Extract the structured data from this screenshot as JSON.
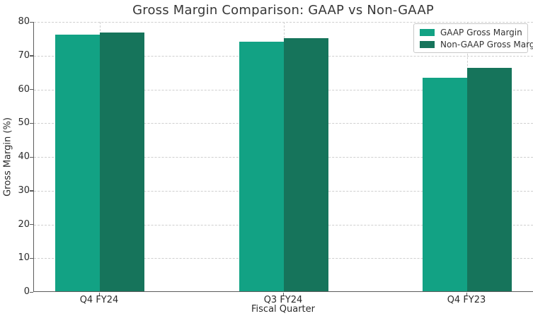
{
  "chart_data": {
    "type": "bar",
    "title": "Gross Margin Comparison: GAAP vs Non-GAAP",
    "xlabel": "Fiscal Quarter",
    "ylabel": "Gross Margin (%)",
    "categories": [
      "Q4 FY24",
      "Q3 FY24",
      "Q4 FY23"
    ],
    "series": [
      {
        "name": "GAAP Gross Margin",
        "color": "#12a284",
        "values": [
          76.0,
          74.0,
          63.3
        ]
      },
      {
        "name": "Non-GAAP Gross Margin",
        "color": "#16745b",
        "values": [
          76.7,
          75.0,
          66.1
        ]
      }
    ],
    "ylim": [
      0,
      80
    ],
    "yticks": [
      0,
      10,
      20,
      30,
      40,
      50,
      60,
      70,
      80
    ],
    "grid": {
      "style": "dashed",
      "axes": "both",
      "color": "#cfcfcf"
    },
    "legend": {
      "position": "upper-right",
      "entries": [
        "GAAP Gross Margin",
        "Non-GAAP Gross Margin"
      ]
    },
    "colors": {
      "spine": "#5c5c5c",
      "text": "#2b2b2b",
      "background": "#ffffff"
    }
  }
}
